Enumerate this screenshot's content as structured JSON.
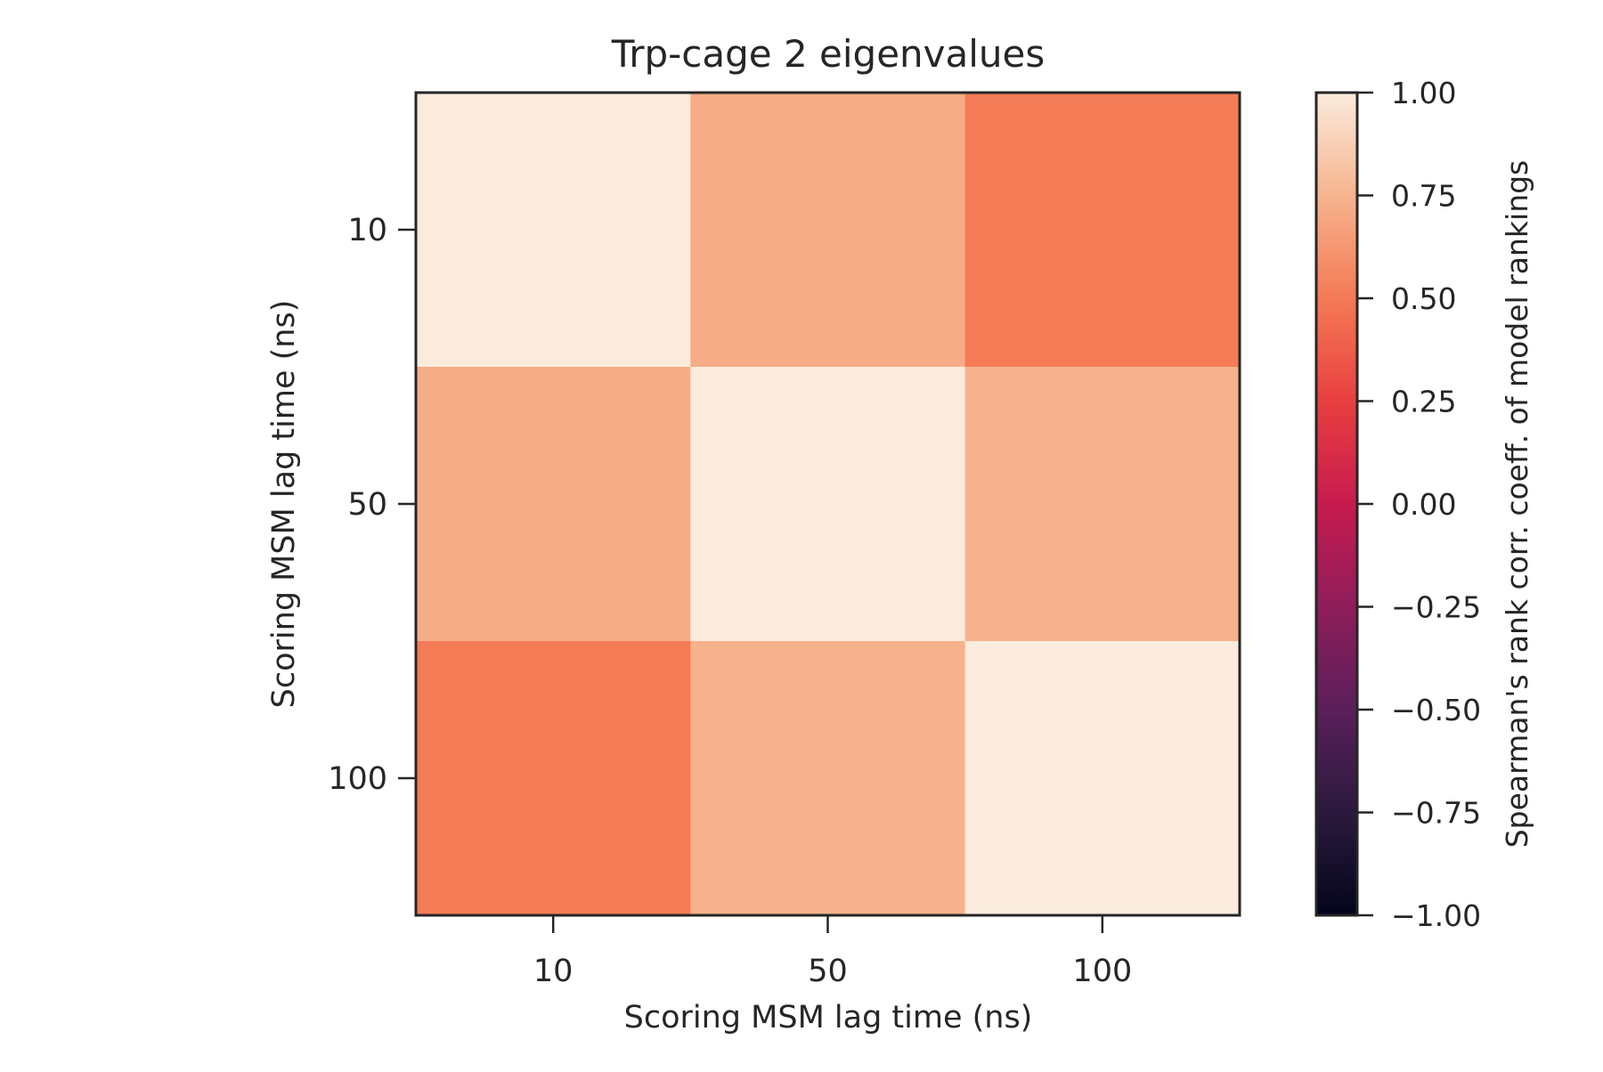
{
  "chart_data": {
    "type": "heatmap",
    "title": "Trp-cage 2 eigenvalues",
    "xlabel": "Scoring MSM lag time (ns)",
    "ylabel": "Scoring MSM lag time (ns)",
    "x_categories": [
      "10",
      "50",
      "100"
    ],
    "y_categories": [
      "10",
      "50",
      "100"
    ],
    "values": [
      [
        1.0,
        0.72,
        0.51
      ],
      [
        0.72,
        1.0,
        0.74
      ],
      [
        0.51,
        0.74,
        1.0
      ]
    ],
    "colorbar": {
      "label": "Spearman's rank corr. coeff. of model rankings",
      "range": [
        -1.0,
        1.0
      ],
      "ticks": [
        "1.00",
        "0.75",
        "0.50",
        "0.25",
        "0.00",
        "−0.25",
        "−0.50",
        "−0.75",
        "−1.00"
      ],
      "tick_values": [
        1.0,
        0.75,
        0.5,
        0.25,
        0.0,
        -0.25,
        -0.5,
        -0.75,
        -1.0
      ],
      "colormap_stops": [
        {
          "value": -1.0,
          "color": "#03051a"
        },
        {
          "value": -0.75,
          "color": "#2b1a3e"
        },
        {
          "value": -0.5,
          "color": "#5a1f5a"
        },
        {
          "value": -0.25,
          "color": "#8f1d5a"
        },
        {
          "value": 0.0,
          "color": "#c71b4f"
        },
        {
          "value": 0.25,
          "color": "#e83f3f"
        },
        {
          "value": 0.5,
          "color": "#f47a55"
        },
        {
          "value": 0.75,
          "color": "#f6b48e"
        },
        {
          "value": 1.0,
          "color": "#faebdd"
        }
      ]
    },
    "grid": false
  }
}
